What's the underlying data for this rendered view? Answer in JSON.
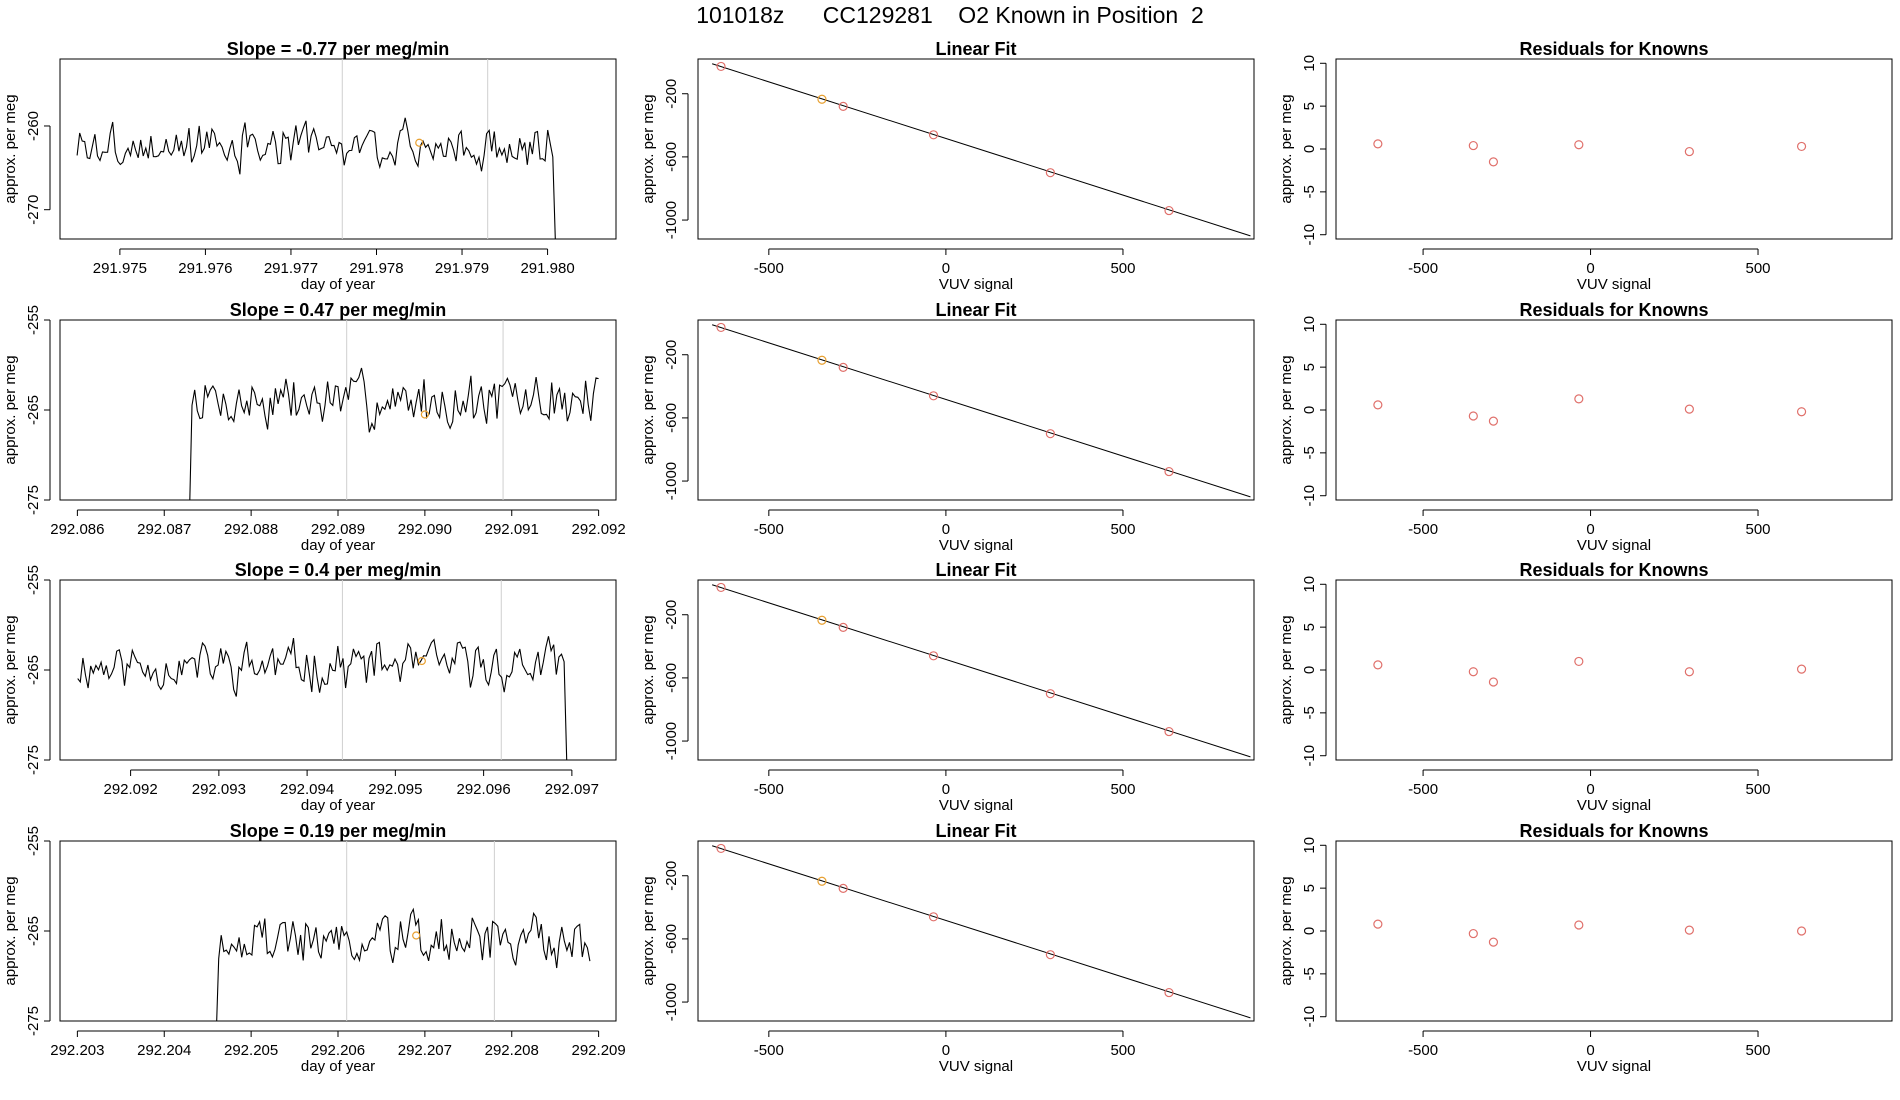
{
  "page_title": "101018z      CC129281    O2 Known in Position  2",
  "colors": {
    "line": "#000000",
    "known_point": "#e0706b",
    "highlight_point": "#e8a030",
    "vline": "#cfcfcf"
  },
  "chart_data": [
    {
      "type": "line",
      "panel": "row1-timeseries",
      "title": "Slope =  -0.77  per meg/min",
      "xlabel": "day of year",
      "ylabel": "approx. per meg",
      "xlim": [
        291.9743,
        291.9808
      ],
      "ylim": [
        -273.5,
        -252
      ],
      "xticks": [
        291.975,
        291.976,
        291.977,
        291.978,
        291.979,
        291.98
      ],
      "xtick_labels": [
        "291.975",
        "291.976",
        "291.977",
        "291.978",
        "291.979",
        "291.980"
      ],
      "yticks": [
        -260,
        -270
      ],
      "ytick_labels": [
        "-260",
        "-270"
      ],
      "vlines": [
        291.9776,
        291.9793
      ],
      "highlight": {
        "x": 291.9785,
        "y": -262
      },
      "series": [
        {
          "seed": 3,
          "x_start": 291.9745,
          "x_end": 291.98015,
          "base": -262.5,
          "amp": 3.2,
          "dropout_until": null,
          "end_value": -273.5
        }
      ]
    },
    {
      "type": "scatter",
      "panel": "row1-linear-fit",
      "title": "Linear Fit",
      "xlabel": "VUV signal",
      "ylabel": "approx. per meg",
      "xlim": [
        -700,
        870
      ],
      "ylim": [
        -1120,
        20
      ],
      "xticks": [
        -500,
        0,
        500
      ],
      "xtick_labels": [
        "-500",
        "0",
        "500"
      ],
      "yticks": [
        -200,
        -600,
        -1000
      ],
      "ytick_labels": [
        "-200",
        "-600",
        "-1000"
      ],
      "fit_line": {
        "x": [
          -660,
          860
        ],
        "y": [
          -10,
          -1100
        ]
      },
      "points": [
        {
          "x": -635,
          "y": -27,
          "highlight": false
        },
        {
          "x": -350,
          "y": -235,
          "highlight": true
        },
        {
          "x": -290,
          "y": -280,
          "highlight": false
        },
        {
          "x": -35,
          "y": -460,
          "highlight": false
        },
        {
          "x": 295,
          "y": -700,
          "highlight": false
        },
        {
          "x": 630,
          "y": -940,
          "highlight": false
        }
      ]
    },
    {
      "type": "scatter",
      "panel": "row1-residuals",
      "title": "Residuals for Knowns",
      "xlabel": "VUV signal",
      "ylabel": "approx. per meg",
      "xlim": [
        -760,
        900
      ],
      "ylim": [
        -10.5,
        10.5
      ],
      "xticks": [
        -500,
        0,
        500
      ],
      "xtick_labels": [
        "-500",
        "0",
        "500"
      ],
      "yticks": [
        10,
        5,
        0,
        -5,
        -10
      ],
      "ytick_labels": [
        "10",
        "5",
        "0",
        "-5",
        "-10"
      ],
      "points": [
        {
          "x": -635,
          "y": 0.6
        },
        {
          "x": -350,
          "y": 0.4
        },
        {
          "x": -290,
          "y": -1.5
        },
        {
          "x": -35,
          "y": 0.5
        },
        {
          "x": 295,
          "y": -0.3
        },
        {
          "x": 630,
          "y": 0.3
        }
      ]
    },
    {
      "type": "line",
      "panel": "row2-timeseries",
      "title": "Slope =  0.47  per meg/min",
      "xlabel": "day of year",
      "ylabel": "approx. per meg",
      "xlim": [
        292.0858,
        292.0922
      ],
      "ylim": [
        -275,
        -255
      ],
      "xticks": [
        292.086,
        292.087,
        292.088,
        292.089,
        292.09,
        292.091,
        292.092
      ],
      "xtick_labels": [
        "292.086",
        "292.087",
        "292.088",
        "292.089",
        "292.090",
        "292.091",
        "292.092"
      ],
      "yticks": [
        -255,
        -265,
        -275
      ],
      "ytick_labels": [
        "-255",
        "-265",
        "-275"
      ],
      "vlines": [
        292.0891,
        292.0909
      ],
      "highlight": {
        "x": 292.09,
        "y": -265.5
      },
      "series": [
        {
          "seed": 7,
          "x_start": 292.0863,
          "x_end": 292.092,
          "base": -264,
          "amp": 3.8,
          "dropout_until": 292.0873,
          "end_value": null
        }
      ]
    },
    {
      "type": "scatter",
      "panel": "row2-linear-fit",
      "title": "Linear Fit",
      "xlabel": "VUV signal",
      "ylabel": "approx. per meg",
      "xlim": [
        -700,
        870
      ],
      "ylim": [
        -1120,
        20
      ],
      "xticks": [
        -500,
        0,
        500
      ],
      "xtick_labels": [
        "-500",
        "0",
        "500"
      ],
      "yticks": [
        -200,
        -600,
        -1000
      ],
      "ytick_labels": [
        "-200",
        "-600",
        "-1000"
      ],
      "fit_line": {
        "x": [
          -660,
          860
        ],
        "y": [
          -10,
          -1100
        ]
      },
      "points": [
        {
          "x": -635,
          "y": -27,
          "highlight": false
        },
        {
          "x": -350,
          "y": -235,
          "highlight": true
        },
        {
          "x": -290,
          "y": -280,
          "highlight": false
        },
        {
          "x": -35,
          "y": -460,
          "highlight": false
        },
        {
          "x": 295,
          "y": -700,
          "highlight": false
        },
        {
          "x": 630,
          "y": -940,
          "highlight": false
        }
      ]
    },
    {
      "type": "scatter",
      "panel": "row2-residuals",
      "title": "Residuals for Knowns",
      "xlabel": "VUV signal",
      "ylabel": "approx. per meg",
      "xlim": [
        -760,
        900
      ],
      "ylim": [
        -10.5,
        10.5
      ],
      "xticks": [
        -500,
        0,
        500
      ],
      "xtick_labels": [
        "-500",
        "0",
        "500"
      ],
      "yticks": [
        10,
        5,
        0,
        -5,
        -10
      ],
      "ytick_labels": [
        "10",
        "5",
        "0",
        "-5",
        "-10"
      ],
      "points": [
        {
          "x": -635,
          "y": 0.6
        },
        {
          "x": -350,
          "y": -0.7
        },
        {
          "x": -290,
          "y": -1.3
        },
        {
          "x": -35,
          "y": 1.3
        },
        {
          "x": 295,
          "y": 0.1
        },
        {
          "x": 630,
          "y": -0.2
        }
      ]
    },
    {
      "type": "line",
      "panel": "row3-timeseries",
      "title": "Slope =  0.4  per meg/min",
      "xlabel": "day of year",
      "ylabel": "approx. per meg",
      "xlim": [
        292.0912,
        292.0975
      ],
      "ylim": [
        -275,
        -255
      ],
      "xticks": [
        292.092,
        292.093,
        292.094,
        292.095,
        292.096,
        292.097
      ],
      "xtick_labels": [
        "292.092",
        "292.093",
        "292.094",
        "292.095",
        "292.096",
        "292.097"
      ],
      "yticks": [
        -255,
        -265,
        -275
      ],
      "ytick_labels": [
        "-255",
        "-265",
        "-275"
      ],
      "vlines": [
        292.0944,
        292.0962
      ],
      "highlight": {
        "x": 292.0953,
        "y": -264
      },
      "series": [
        {
          "seed": 11,
          "x_start": 292.0914,
          "x_end": 292.097,
          "base": -264.5,
          "amp": 3.2,
          "dropout_until": null,
          "end_value": -275
        }
      ]
    },
    {
      "type": "scatter",
      "panel": "row3-linear-fit",
      "title": "Linear Fit",
      "xlabel": "VUV signal",
      "ylabel": "approx. per meg",
      "xlim": [
        -700,
        870
      ],
      "ylim": [
        -1120,
        20
      ],
      "xticks": [
        -500,
        0,
        500
      ],
      "xtick_labels": [
        "-500",
        "0",
        "500"
      ],
      "yticks": [
        -200,
        -600,
        -1000
      ],
      "ytick_labels": [
        "-200",
        "-600",
        "-1000"
      ],
      "fit_line": {
        "x": [
          -660,
          860
        ],
        "y": [
          -10,
          -1100
        ]
      },
      "points": [
        {
          "x": -635,
          "y": -27,
          "highlight": false
        },
        {
          "x": -350,
          "y": -235,
          "highlight": true
        },
        {
          "x": -290,
          "y": -280,
          "highlight": false
        },
        {
          "x": -35,
          "y": -460,
          "highlight": false
        },
        {
          "x": 295,
          "y": -700,
          "highlight": false
        },
        {
          "x": 630,
          "y": -940,
          "highlight": false
        }
      ]
    },
    {
      "type": "scatter",
      "panel": "row3-residuals",
      "title": "Residuals for Knowns",
      "xlabel": "VUV signal",
      "ylabel": "approx. per meg",
      "xlim": [
        -760,
        900
      ],
      "ylim": [
        -10.5,
        10.5
      ],
      "xticks": [
        -500,
        0,
        500
      ],
      "xtick_labels": [
        "-500",
        "0",
        "500"
      ],
      "yticks": [
        10,
        5,
        0,
        -5,
        -10
      ],
      "ytick_labels": [
        "10",
        "5",
        "0",
        "-5",
        "-10"
      ],
      "points": [
        {
          "x": -635,
          "y": 0.6
        },
        {
          "x": -350,
          "y": -0.2
        },
        {
          "x": -290,
          "y": -1.4
        },
        {
          "x": -35,
          "y": 1.0
        },
        {
          "x": 295,
          "y": -0.2
        },
        {
          "x": 630,
          "y": 0.1
        }
      ]
    },
    {
      "type": "line",
      "panel": "row4-timeseries",
      "title": "Slope =  0.19  per meg/min",
      "xlabel": "day of year",
      "ylabel": "approx. per meg",
      "xlim": [
        292.2028,
        292.2092
      ],
      "ylim": [
        -275,
        -255
      ],
      "xticks": [
        292.203,
        292.204,
        292.205,
        292.206,
        292.207,
        292.208,
        292.209
      ],
      "xtick_labels": [
        "292.203",
        "292.204",
        "292.205",
        "292.206",
        "292.207",
        "292.208",
        "292.209"
      ],
      "yticks": [
        -255,
        -265,
        -275
      ],
      "ytick_labels": [
        "-255",
        "-265",
        "-275"
      ],
      "vlines": [
        292.2061,
        292.2078
      ],
      "highlight": {
        "x": 292.2069,
        "y": -265.5
      },
      "series": [
        {
          "seed": 19,
          "x_start": 292.2033,
          "x_end": 292.2089,
          "base": -266,
          "amp": 3.5,
          "dropout_until": 292.2046,
          "end_value": null
        }
      ]
    },
    {
      "type": "scatter",
      "panel": "row4-linear-fit",
      "title": "Linear Fit",
      "xlabel": "VUV signal",
      "ylabel": "approx. per meg",
      "xlim": [
        -700,
        870
      ],
      "ylim": [
        -1120,
        20
      ],
      "xticks": [
        -500,
        0,
        500
      ],
      "xtick_labels": [
        "-500",
        "0",
        "500"
      ],
      "yticks": [
        -200,
        -600,
        -1000
      ],
      "ytick_labels": [
        "-200",
        "-600",
        "-1000"
      ],
      "fit_line": {
        "x": [
          -660,
          860
        ],
        "y": [
          -10,
          -1100
        ]
      },
      "points": [
        {
          "x": -635,
          "y": -27,
          "highlight": false
        },
        {
          "x": -350,
          "y": -235,
          "highlight": true
        },
        {
          "x": -290,
          "y": -280,
          "highlight": false
        },
        {
          "x": -35,
          "y": -460,
          "highlight": false
        },
        {
          "x": 295,
          "y": -700,
          "highlight": false
        },
        {
          "x": 630,
          "y": -940,
          "highlight": false
        }
      ]
    },
    {
      "type": "scatter",
      "panel": "row4-residuals",
      "title": "Residuals for Knowns",
      "xlabel": "VUV signal",
      "ylabel": "approx. per meg",
      "xlim": [
        -760,
        900
      ],
      "ylim": [
        -10.5,
        10.5
      ],
      "xticks": [
        -500,
        0,
        500
      ],
      "xtick_labels": [
        "-500",
        "0",
        "500"
      ],
      "yticks": [
        10,
        5,
        0,
        -5,
        -10
      ],
      "ytick_labels": [
        "10",
        "5",
        "0",
        "-5",
        "-10"
      ],
      "points": [
        {
          "x": -635,
          "y": 0.8
        },
        {
          "x": -350,
          "y": -0.3
        },
        {
          "x": -290,
          "y": -1.3
        },
        {
          "x": -35,
          "y": 0.7
        },
        {
          "x": 295,
          "y": 0.1
        },
        {
          "x": 630,
          "y": 0.0
        }
      ]
    }
  ]
}
